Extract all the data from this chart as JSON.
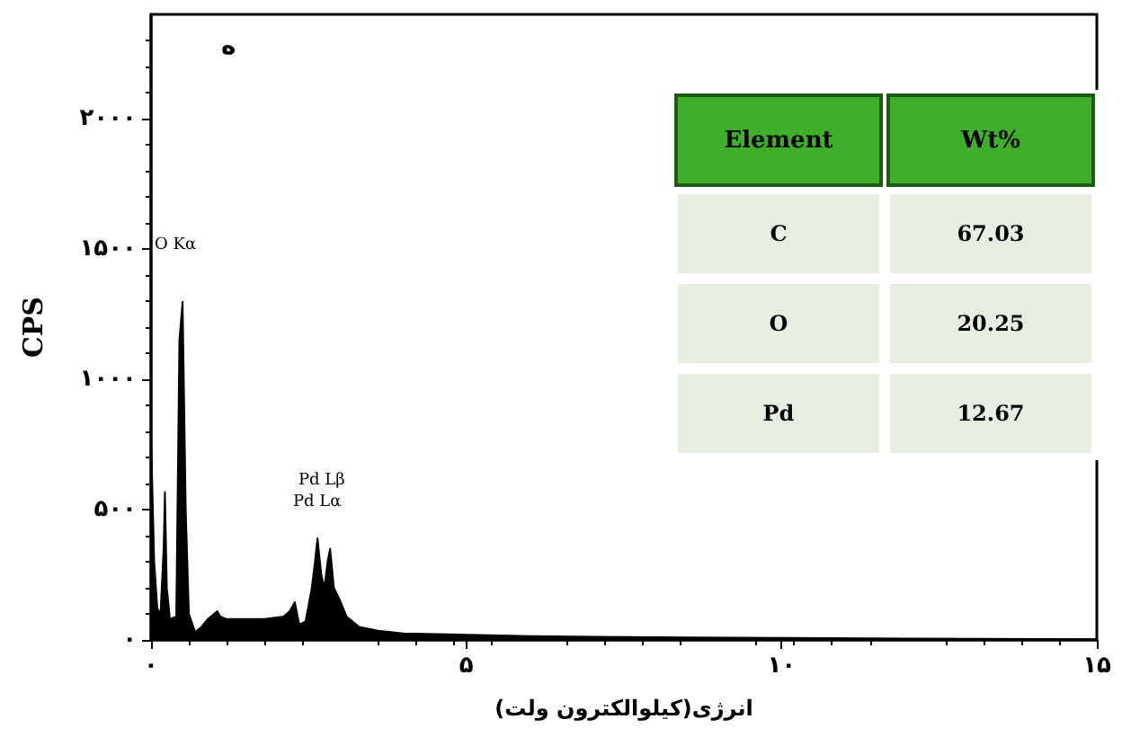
{
  "chart_data": [
    {
      "type": "area",
      "title": "ه",
      "xlabel": "انرژی(کیلوالکترون ولت)",
      "ylabel": "CPS",
      "color": "#000000",
      "x": [
        0,
        0.05,
        0.1,
        0.15,
        0.2,
        0.22,
        0.25,
        0.3,
        0.4,
        0.45,
        0.5,
        0.55,
        0.6,
        0.7,
        0.8,
        0.9,
        1.0,
        1.05,
        1.1,
        1.2,
        1.5,
        1.8,
        2.1,
        2.2,
        2.28,
        2.35,
        2.45,
        2.55,
        2.6,
        2.64,
        2.7,
        2.75,
        2.8,
        2.84,
        2.9,
        3.0,
        3.1,
        3.3,
        3.6,
        4,
        5,
        6,
        7,
        8,
        10,
        12,
        15
      ],
      "values": [
        780,
        300,
        120,
        100,
        350,
        567,
        200,
        80,
        90,
        1150,
        1297,
        500,
        100,
        30,
        50,
        80,
        100,
        110,
        90,
        80,
        80,
        80,
        90,
        110,
        145,
        60,
        70,
        200,
        300,
        390,
        250,
        200,
        300,
        350,
        200,
        150,
        90,
        50,
        35,
        25,
        20,
        15,
        12,
        10,
        8,
        5,
        3
      ],
      "xlim": [
        0,
        15
      ],
      "xticks": [
        {
          "value": 0,
          "label": "۰"
        },
        {
          "value": 5,
          "label": "۵"
        },
        {
          "value": 10,
          "label": "۱۰"
        },
        {
          "value": 15,
          "label": "۱۵"
        }
      ],
      "ylim": [
        0,
        2400
      ],
      "yticks": [
        {
          "value": 0,
          "label": "۰"
        },
        {
          "value": 500,
          "label": "۵۰۰"
        },
        {
          "value": 1000,
          "label": "۱۰۰۰"
        },
        {
          "value": 1500,
          "label": "۱۵۰۰"
        },
        {
          "value": 2000,
          "label": "۲۰۰۰"
        }
      ],
      "grid": false,
      "annotations": [
        "O Kα",
        "Pd Lβ",
        "Pd Lα"
      ]
    },
    {
      "type": "other",
      "xlabel": "Element",
      "ylabel": "Wt%",
      "categories": [
        "C",
        "O",
        "Pd"
      ],
      "values": [
        67.03,
        20.25,
        12.67
      ],
      "data_labels": true
    }
  ]
}
